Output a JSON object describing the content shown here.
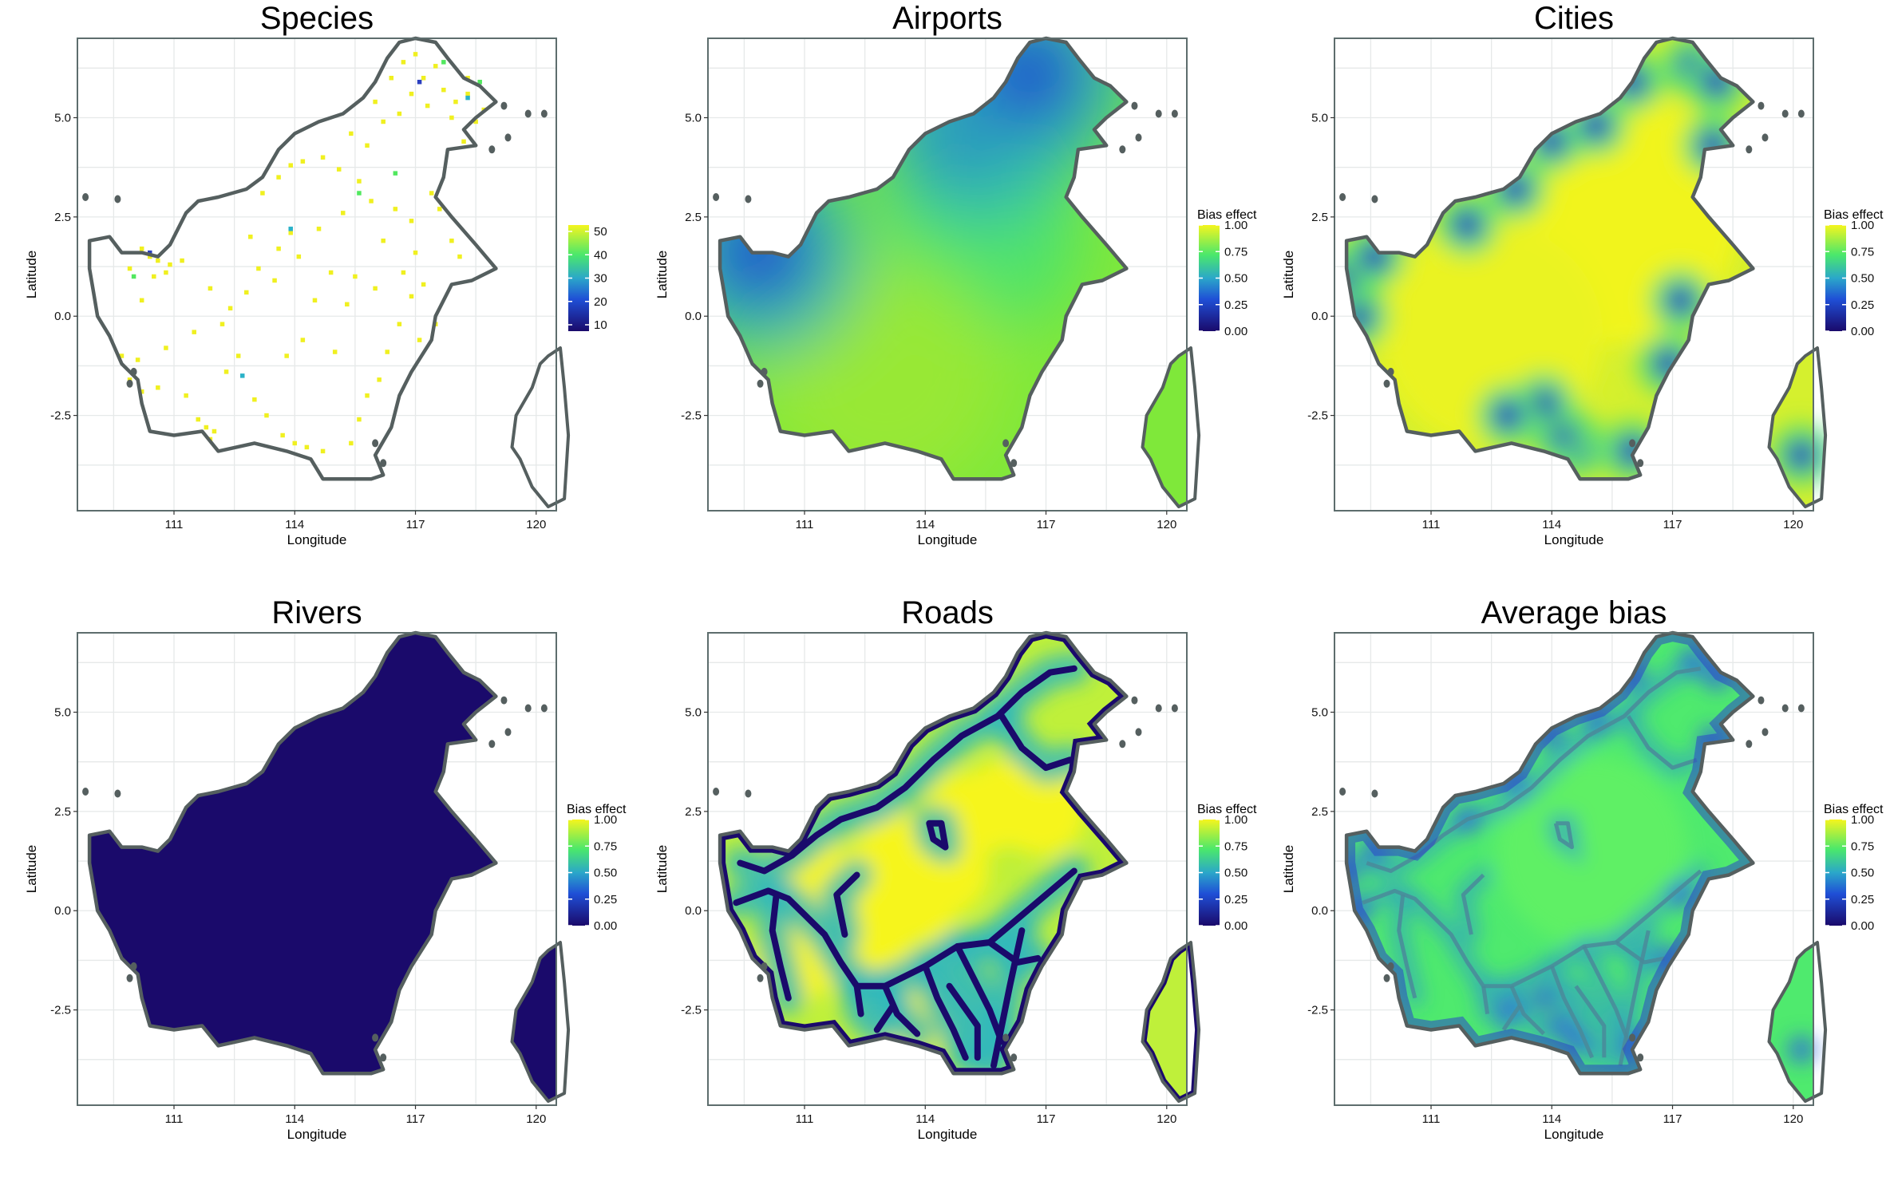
{
  "chart_data": [
    {
      "type": "heatmap",
      "title": "Species",
      "xlabel": "Longitude",
      "ylabel": "Latitude",
      "xticks": [
        "111",
        "114",
        "117",
        "120"
      ],
      "yticks": [
        "5.0",
        "2.5",
        "0.0",
        "-2.5"
      ],
      "legend": {
        "title": "",
        "labels": [
          "50",
          "40",
          "30",
          "20",
          "10"
        ],
        "placement": "right"
      },
      "render": "points"
    },
    {
      "type": "heatmap",
      "title": "Airports",
      "xlabel": "Longitude",
      "ylabel": "Latitude",
      "xticks": [
        "111",
        "114",
        "117",
        "120"
      ],
      "yticks": [
        "5.0",
        "2.5",
        "0.0",
        "-2.5"
      ],
      "legend": {
        "title": "Bias effect",
        "labels": [
          "1.00",
          "0.75",
          "0.50",
          "0.25",
          "0.00"
        ],
        "placement": "right"
      },
      "render": "airports"
    },
    {
      "type": "heatmap",
      "title": "Cities",
      "xlabel": "Longitude",
      "ylabel": "Latitude",
      "xticks": [
        "111",
        "114",
        "117",
        "120"
      ],
      "yticks": [
        "5.0",
        "2.5",
        "0.0",
        "-2.5"
      ],
      "legend": {
        "title": "Bias effect",
        "labels": [
          "1.00",
          "0.75",
          "0.50",
          "0.25",
          "0.00"
        ],
        "placement": "right"
      },
      "render": "cities"
    },
    {
      "type": "heatmap",
      "title": "Rivers",
      "xlabel": "Longitude",
      "ylabel": "Latitude",
      "xticks": [
        "111",
        "114",
        "117",
        "120"
      ],
      "yticks": [
        "5.0",
        "2.5",
        "0.0",
        "-2.5"
      ],
      "legend": {
        "title": "Bias effect",
        "labels": [
          "1.00",
          "0.75",
          "0.50",
          "0.25",
          "0.00"
        ],
        "placement": "right"
      },
      "render": "rivers"
    },
    {
      "type": "heatmap",
      "title": "Roads",
      "xlabel": "Longitude",
      "ylabel": "Latitude",
      "xticks": [
        "111",
        "114",
        "117",
        "120"
      ],
      "yticks": [
        "5.0",
        "2.5",
        "0.0",
        "-2.5"
      ],
      "legend": {
        "title": "Bias effect",
        "labels": [
          "1.00",
          "0.75",
          "0.50",
          "0.25",
          "0.00"
        ],
        "placement": "right"
      },
      "render": "roads"
    },
    {
      "type": "heatmap",
      "title": "Average bias",
      "xlabel": "Longitude",
      "ylabel": "Latitude",
      "xticks": [
        "111",
        "114",
        "117",
        "120"
      ],
      "yticks": [
        "5.0",
        "2.5",
        "0.0",
        "-2.5"
      ],
      "legend": {
        "title": "Bias effect",
        "labels": [
          "1.00",
          "0.75",
          "0.50",
          "0.25",
          "0.00"
        ],
        "placement": "right"
      },
      "render": "average"
    }
  ],
  "colors": {
    "border": "#555f5f",
    "grid": "#e6e9e9",
    "frame": "#5d6d6d",
    "low": "#1a0a6b",
    "mid": "#2ba7c9",
    "green": "#4be86b",
    "high": "#f5f51e"
  },
  "scales": {
    "lon": [
      108.6,
      120.5
    ],
    "lat": [
      -4.9,
      7.0
    ]
  },
  "coastline": [
    [
      108.9,
      1.9
    ],
    [
      109.4,
      2.0
    ],
    [
      109.7,
      1.6
    ],
    [
      110.2,
      1.6
    ],
    [
      110.6,
      1.5
    ],
    [
      110.9,
      1.8
    ],
    [
      111.0,
      2.0
    ],
    [
      111.3,
      2.6
    ],
    [
      111.6,
      2.9
    ],
    [
      112.1,
      3.0
    ],
    [
      112.8,
      3.2
    ],
    [
      113.2,
      3.5
    ],
    [
      113.6,
      4.2
    ],
    [
      114.0,
      4.6
    ],
    [
      114.6,
      4.9
    ],
    [
      115.2,
      5.1
    ],
    [
      115.7,
      5.5
    ],
    [
      116.0,
      5.9
    ],
    [
      116.3,
      6.5
    ],
    [
      116.6,
      6.9
    ],
    [
      117.0,
      7.0
    ],
    [
      117.5,
      6.9
    ],
    [
      117.8,
      6.5
    ],
    [
      118.2,
      6.0
    ],
    [
      118.6,
      5.8
    ],
    [
      119.0,
      5.4
    ],
    [
      118.5,
      5.0
    ],
    [
      118.2,
      4.7
    ],
    [
      118.5,
      4.3
    ],
    [
      117.8,
      4.2
    ],
    [
      117.7,
      3.5
    ],
    [
      117.5,
      3.0
    ],
    [
      117.9,
      2.5
    ],
    [
      118.5,
      1.8
    ],
    [
      119.0,
      1.2
    ],
    [
      118.4,
      0.9
    ],
    [
      117.9,
      0.8
    ],
    [
      117.5,
      0.0
    ],
    [
      117.4,
      -0.6
    ],
    [
      116.9,
      -1.4
    ],
    [
      116.6,
      -2.0
    ],
    [
      116.4,
      -2.8
    ],
    [
      116.0,
      -3.5
    ],
    [
      116.2,
      -4.0
    ],
    [
      115.9,
      -4.1
    ],
    [
      114.7,
      -4.1
    ],
    [
      114.4,
      -3.6
    ],
    [
      113.8,
      -3.4
    ],
    [
      113.0,
      -3.2
    ],
    [
      112.1,
      -3.4
    ],
    [
      111.7,
      -2.9
    ],
    [
      111.0,
      -3.0
    ],
    [
      110.4,
      -2.9
    ],
    [
      110.2,
      -2.2
    ],
    [
      110.1,
      -1.6
    ],
    [
      109.7,
      -1.2
    ],
    [
      109.4,
      -0.5
    ],
    [
      109.1,
      0.0
    ],
    [
      109.0,
      0.6
    ],
    [
      108.9,
      1.2
    ]
  ],
  "sulawesi": [
    [
      120.3,
      -1.0
    ],
    [
      120.6,
      -0.8
    ],
    [
      120.7,
      -1.8
    ],
    [
      120.8,
      -3.0
    ],
    [
      120.7,
      -4.6
    ],
    [
      120.3,
      -4.8
    ],
    [
      119.9,
      -4.3
    ],
    [
      119.6,
      -3.6
    ],
    [
      119.4,
      -3.3
    ],
    [
      119.5,
      -2.5
    ],
    [
      119.9,
      -1.8
    ],
    [
      120.1,
      -1.2
    ]
  ],
  "islets": [
    [
      108.8,
      3.0
    ],
    [
      109.6,
      2.95
    ],
    [
      110.0,
      -1.4
    ],
    [
      109.9,
      -1.7
    ],
    [
      116.0,
      -3.2
    ],
    [
      116.2,
      -3.7
    ],
    [
      119.8,
      5.1
    ],
    [
      120.2,
      5.1
    ],
    [
      119.2,
      5.3
    ],
    [
      119.3,
      4.5
    ],
    [
      118.9,
      4.2
    ]
  ],
  "airports": [
    [
      109.9,
      1.6
    ],
    [
      115.3,
      4.9
    ],
    [
      116.6,
      6.1
    ]
  ],
  "cities": [
    [
      109.2,
      0.0
    ],
    [
      108.9,
      1.0
    ],
    [
      109.6,
      1.5
    ],
    [
      111.9,
      2.3
    ],
    [
      113.1,
      3.2
    ],
    [
      114.0,
      4.4
    ],
    [
      115.1,
      4.8
    ],
    [
      116.0,
      5.9
    ],
    [
      117.5,
      6.3
    ],
    [
      118.1,
      5.9
    ],
    [
      118.0,
      4.3
    ],
    [
      117.2,
      0.4
    ],
    [
      116.9,
      -1.2
    ],
    [
      116.0,
      -3.4
    ],
    [
      114.6,
      -3.3
    ],
    [
      114.2,
      -2.9
    ],
    [
      113.8,
      -2.2
    ],
    [
      112.9,
      -2.5
    ],
    [
      120.2,
      -3.5
    ]
  ],
  "roads": [
    [
      [
        109.3,
        0.2
      ],
      [
        110.1,
        0.5
      ],
      [
        110.6,
        0.3
      ],
      [
        111.0,
        -0.1
      ],
      [
        111.5,
        -0.6
      ],
      [
        111.9,
        -1.3
      ],
      [
        112.3,
        -1.9
      ],
      [
        113.0,
        -1.9
      ],
      [
        114.0,
        -1.4
      ],
      [
        114.8,
        -0.9
      ],
      [
        115.6,
        -0.8
      ],
      [
        116.3,
        -1.3
      ],
      [
        116.8,
        -1.2
      ]
    ],
    [
      [
        109.4,
        1.2
      ],
      [
        110.0,
        1.0
      ],
      [
        110.7,
        1.4
      ],
      [
        111.3,
        1.9
      ],
      [
        111.9,
        2.3
      ],
      [
        112.8,
        2.6
      ],
      [
        113.5,
        3.1
      ],
      [
        114.2,
        3.8
      ],
      [
        114.9,
        4.4
      ],
      [
        115.8,
        4.9
      ],
      [
        116.4,
        5.5
      ],
      [
        117.1,
        6.0
      ],
      [
        117.7,
        6.1
      ]
    ],
    [
      [
        110.3,
        0.4
      ],
      [
        110.2,
        -0.5
      ],
      [
        110.4,
        -1.4
      ],
      [
        110.6,
        -2.2
      ]
    ],
    [
      [
        112.3,
        -1.9
      ],
      [
        112.4,
        -2.6
      ]
    ],
    [
      [
        113.0,
        -1.9
      ],
      [
        113.3,
        -2.6
      ],
      [
        113.8,
        -3.1
      ]
    ],
    [
      [
        114.0,
        -1.4
      ],
      [
        114.3,
        -2.2
      ],
      [
        114.7,
        -3.0
      ],
      [
        115.0,
        -3.7
      ]
    ],
    [
      [
        114.8,
        -0.9
      ],
      [
        115.2,
        -1.7
      ],
      [
        115.6,
        -2.5
      ],
      [
        115.9,
        -3.3
      ]
    ],
    [
      [
        115.6,
        -0.8
      ],
      [
        116.3,
        -0.2
      ],
      [
        117.0,
        0.4
      ],
      [
        117.7,
        1.0
      ]
    ],
    [
      [
        115.9,
        4.9
      ],
      [
        116.4,
        4.1
      ],
      [
        117.0,
        3.6
      ],
      [
        117.6,
        3.8
      ]
    ],
    [
      [
        114.1,
        2.2
      ],
      [
        114.2,
        1.8
      ],
      [
        114.5,
        1.6
      ],
      [
        114.4,
        2.2
      ],
      [
        114.1,
        2.2
      ]
    ],
    [
      [
        112.0,
        -0.6
      ],
      [
        111.8,
        0.4
      ],
      [
        112.3,
        0.9
      ]
    ],
    [
      [
        113.2,
        -2.4
      ],
      [
        112.8,
        -3.0
      ]
    ],
    [
      [
        114.6,
        -1.9
      ],
      [
        115.3,
        -2.9
      ],
      [
        115.3,
        -3.7
      ]
    ],
    [
      [
        116.4,
        -0.5
      ],
      [
        116.1,
        -1.9
      ],
      [
        115.7,
        -3.9
      ]
    ]
  ],
  "hubs": [
    [
      113.4,
      1.3
    ],
    [
      112.9,
      0.8
    ],
    [
      114.5,
      1.0
    ],
    [
      113.8,
      0.3
    ],
    [
      112.6,
      -0.8
    ],
    [
      111.0,
      0.9
    ],
    [
      110.8,
      -1.2
    ],
    [
      113.6,
      -2.6
    ],
    [
      116.9,
      2.5
    ],
    [
      116.0,
      2.7
    ],
    [
      115.1,
      2.4
    ]
  ],
  "species_points": [
    [
      110.2,
      1.7
    ],
    [
      110.4,
      1.5
    ],
    [
      110.6,
      1.4
    ],
    [
      109.9,
      1.2
    ],
    [
      110.9,
      1.3
    ],
    [
      111.2,
      1.4
    ],
    [
      110.5,
      1.0
    ],
    [
      110.8,
      1.1
    ],
    [
      110.2,
      0.4
    ],
    [
      109.7,
      -1.0
    ],
    [
      110.1,
      -1.1
    ],
    [
      110.6,
      -1.8
    ],
    [
      109.9,
      -1.6
    ],
    [
      110.2,
      -1.9
    ],
    [
      111.3,
      -2.0
    ],
    [
      110.8,
      -0.8
    ],
    [
      111.6,
      -2.6
    ],
    [
      111.8,
      -2.8
    ],
    [
      112.0,
      -2.9
    ],
    [
      111.9,
      -3.1
    ],
    [
      112.6,
      -1.0
    ],
    [
      112.3,
      -1.4
    ],
    [
      113.0,
      -2.1
    ],
    [
      113.3,
      -2.5
    ],
    [
      113.7,
      -3.0
    ],
    [
      114.0,
      -3.2
    ],
    [
      114.3,
      -3.3
    ],
    [
      114.7,
      -3.4
    ],
    [
      115.4,
      -3.2
    ],
    [
      115.6,
      -2.6
    ],
    [
      115.8,
      -2.0
    ],
    [
      116.1,
      -1.6
    ],
    [
      116.3,
      -0.9
    ],
    [
      116.6,
      -0.2
    ],
    [
      116.9,
      0.5
    ],
    [
      117.2,
      0.8
    ],
    [
      117.5,
      -0.2
    ],
    [
      117.1,
      -0.6
    ],
    [
      115.3,
      0.3
    ],
    [
      114.5,
      0.4
    ],
    [
      113.5,
      0.9
    ],
    [
      112.8,
      0.6
    ],
    [
      111.9,
      0.7
    ],
    [
      113.1,
      1.2
    ],
    [
      114.1,
      1.5
    ],
    [
      113.9,
      2.1
    ],
    [
      114.6,
      2.2
    ],
    [
      115.2,
      2.6
    ],
    [
      115.9,
      2.9
    ],
    [
      116.5,
      2.7
    ],
    [
      116.9,
      2.4
    ],
    [
      113.2,
      3.1
    ],
    [
      113.6,
      3.5
    ],
    [
      113.9,
      3.8
    ],
    [
      114.2,
      3.9
    ],
    [
      114.7,
      4.0
    ],
    [
      115.1,
      3.7
    ],
    [
      115.6,
      3.4
    ],
    [
      115.8,
      4.3
    ],
    [
      116.2,
      4.9
    ],
    [
      116.6,
      5.1
    ],
    [
      116.9,
      5.6
    ],
    [
      117.2,
      6.0
    ],
    [
      117.5,
      6.3
    ],
    [
      116.4,
      6.0
    ],
    [
      116.7,
      6.4
    ],
    [
      117.0,
      6.6
    ],
    [
      117.7,
      5.7
    ],
    [
      118.0,
      5.4
    ],
    [
      118.3,
      5.6
    ],
    [
      117.9,
      5.0
    ],
    [
      118.5,
      4.9
    ],
    [
      118.2,
      4.4
    ],
    [
      118.7,
      5.2
    ],
    [
      117.4,
      3.1
    ],
    [
      117.6,
      2.7
    ],
    [
      117.9,
      1.9
    ],
    [
      118.1,
      1.5
    ],
    [
      117.0,
      1.6
    ],
    [
      116.7,
      1.1
    ],
    [
      112.2,
      -0.2
    ],
    [
      112.4,
      0.2
    ],
    [
      111.5,
      -0.4
    ],
    [
      113.8,
      -1.0
    ],
    [
      114.2,
      -0.6
    ],
    [
      115.0,
      -0.9
    ],
    [
      115.5,
      1.0
    ],
    [
      116.0,
      0.7
    ],
    [
      112.9,
      2.0
    ],
    [
      113.6,
      1.7
    ],
    [
      114.9,
      1.1
    ],
    [
      116.2,
      1.9
    ],
    [
      118.3,
      6.0
    ],
    [
      117.3,
      5.3
    ],
    [
      116.0,
      5.4
    ],
    [
      115.4,
      4.6
    ]
  ],
  "species_highlights": [
    [
      117.1,
      5.9,
      0.7
    ],
    [
      110.4,
      1.6,
      0.7
    ],
    [
      118.3,
      5.5,
      0.6
    ],
    [
      112.7,
      -1.5,
      0.55
    ],
    [
      116.5,
      3.6,
      0.5
    ],
    [
      113.9,
      2.2,
      0.6
    ],
    [
      117.7,
      6.4,
      0.3
    ],
    [
      110.0,
      1.0,
      0.4
    ],
    [
      118.6,
      5.9,
      0.35
    ],
    [
      115.6,
      3.1,
      0.5
    ]
  ]
}
